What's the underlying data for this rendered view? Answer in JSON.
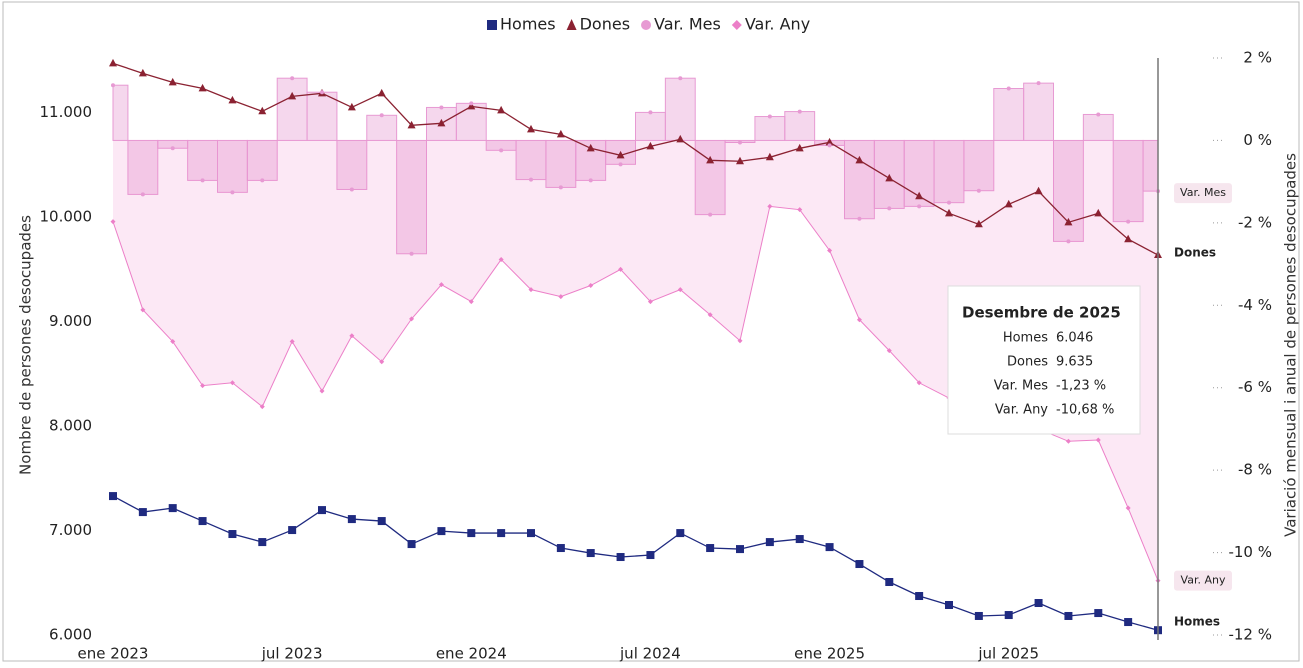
{
  "chart_data": {
    "type": "line",
    "y_title": "Nombre de persones desocupades",
    "y2_title": "Variació mensual i anual de persones desocupades",
    "categories": [
      "ene 2023",
      null,
      null,
      null,
      null,
      null,
      "jul 2023",
      null,
      null,
      null,
      null,
      null,
      "ene 2024",
      null,
      null,
      null,
      null,
      null,
      "jul 2024",
      null,
      null,
      null,
      null,
      null,
      "ene 2025",
      null,
      null,
      null,
      null,
      null,
      "jul 2025",
      null,
      null,
      null,
      null,
      null
    ],
    "ylim": [
      6000,
      11520
    ],
    "yticks": [
      {
        "value": 6000,
        "label": "6.000"
      },
      {
        "value": 7000,
        "label": "7.000"
      },
      {
        "value": 8000,
        "label": "8.000"
      },
      {
        "value": 9000,
        "label": "9.000"
      },
      {
        "value": 10000,
        "label": "10.000"
      },
      {
        "value": 11000,
        "label": "11.000"
      }
    ],
    "y2lim": [
      -12,
      2
    ],
    "y2ticks": [
      {
        "value": -12,
        "label": "-12 %"
      },
      {
        "value": -10,
        "label": "-10 %"
      },
      {
        "value": -8,
        "label": "-8 %"
      },
      {
        "value": -6,
        "label": "-6 %"
      },
      {
        "value": -4,
        "label": "-4 %"
      },
      {
        "value": -2,
        "label": "-2 %"
      },
      {
        "value": 0,
        "label": "0 %"
      },
      {
        "value": 2,
        "label": "2 %"
      }
    ],
    "legend": "top",
    "series": [
      {
        "name": "Homes",
        "color": "#1f2a80",
        "marker": "square",
        "values": [
          7329,
          7176,
          7214,
          7090,
          6966,
          6889,
          7004,
          7195,
          7109,
          7090,
          6870,
          6994,
          6975,
          6975,
          6975,
          6832,
          6784,
          6746,
          6765,
          6975,
          6832,
          6822,
          6889,
          6918,
          6841,
          6679,
          6507,
          6373,
          6287,
          6182,
          6191,
          6306,
          6182,
          6210,
          6124,
          6046
        ]
      },
      {
        "name": "Dones",
        "color": "#8b2232",
        "marker": "triangle",
        "values": [
          11469,
          11373,
          11287,
          11229,
          11115,
          11010,
          11153,
          11182,
          11048,
          11182,
          10876,
          10895,
          11057,
          11019,
          10837,
          10789,
          10656,
          10589,
          10675,
          10742,
          10541,
          10532,
          10570,
          10656,
          10713,
          10541,
          10369,
          10197,
          10034,
          9929,
          10120,
          10245,
          9948,
          10034,
          9786,
          9635
        ]
      },
      {
        "name": "Var. Mes",
        "color": "#e79ad3",
        "marker": "circle",
        "axis": "y2",
        "style": "step",
        "values": [
          1.34,
          -1.31,
          -0.19,
          -0.97,
          -1.26,
          -0.97,
          1.51,
          1.17,
          -1.19,
          0.61,
          -2.75,
          0.8,
          0.9,
          -0.24,
          -0.95,
          -1.14,
          -0.97,
          -0.58,
          0.68,
          1.51,
          -1.8,
          -0.05,
          0.58,
          0.7,
          -0.12,
          -1.9,
          -1.65,
          -1.6,
          -1.51,
          -1.22,
          1.26,
          1.39,
          -2.45,
          0.63,
          -1.97,
          -1.23
        ]
      },
      {
        "name": "Var. Any",
        "color": "#ec7fc8",
        "marker": "diamond",
        "axis": "y2",
        "style": "area",
        "values": [
          -1.97,
          -4.11,
          -4.88,
          -5.95,
          -5.88,
          -6.46,
          -4.88,
          -6.08,
          -4.74,
          -5.37,
          -4.33,
          -3.5,
          -3.91,
          -2.89,
          -3.62,
          -3.79,
          -3.52,
          -3.13,
          -3.91,
          -3.62,
          -4.23,
          -4.86,
          -1.6,
          -1.68,
          -2.67,
          -4.35,
          -5.1,
          -5.88,
          -6.25,
          -6.54,
          -6.8,
          -7.0,
          -7.3,
          -7.27,
          -8.92,
          -10.68
        ]
      }
    ],
    "tooltip": {
      "title": "Desembre de 2025",
      "rows": [
        "6.046",
        "9.635",
        "-1,23 %",
        "-10,68 %"
      ]
    }
  }
}
